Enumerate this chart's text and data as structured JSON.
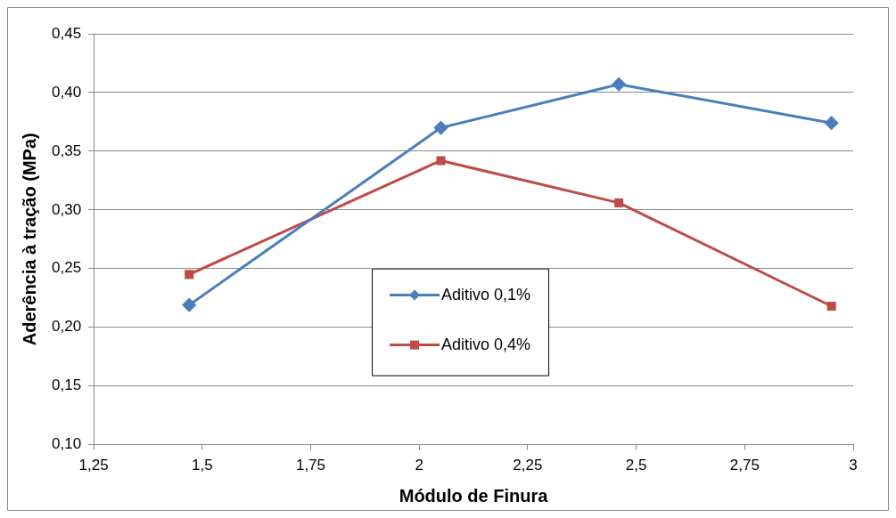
{
  "chart_data": {
    "type": "line",
    "xlabel": "Módulo de Finura",
    "ylabel": "Aderência à tração (MPa)",
    "xlim": [
      1.25,
      3
    ],
    "xticks": [
      {
        "value": 1.25,
        "label": "1,25"
      },
      {
        "value": 1.5,
        "label": "1,5"
      },
      {
        "value": 1.75,
        "label": "1,75"
      },
      2,
      {
        "value": 2.25,
        "label": "2,25"
      },
      {
        "value": 2.5,
        "label": "2,5"
      },
      {
        "value": 2.75,
        "label": "2,75"
      },
      3
    ],
    "ylim": [
      0.1,
      0.45
    ],
    "yticks": [
      {
        "value": 0.1,
        "label": "0,10"
      },
      {
        "value": 0.15,
        "label": "0,15"
      },
      {
        "value": 0.2,
        "label": "0,20"
      },
      {
        "value": 0.25,
        "label": "0,25"
      },
      {
        "value": 0.3,
        "label": "0,30"
      },
      {
        "value": 0.35,
        "label": "0,35"
      },
      {
        "value": 0.4,
        "label": "0,40"
      },
      {
        "value": 0.45,
        "label": "0,45"
      }
    ],
    "x": [
      1.47,
      2.05,
      2.46,
      2.95
    ],
    "series": [
      {
        "name": "Aditivo 0,1%",
        "color": "#4a7ebb",
        "marker": "diamond",
        "values": [
          0.219,
          0.37,
          0.407,
          0.374
        ]
      },
      {
        "name": "Aditivo 0,4%",
        "color": "#be4b48",
        "marker": "square",
        "values": [
          0.245,
          0.342,
          0.306,
          0.218
        ]
      }
    ],
    "grid": "y",
    "legend": "bottom"
  }
}
